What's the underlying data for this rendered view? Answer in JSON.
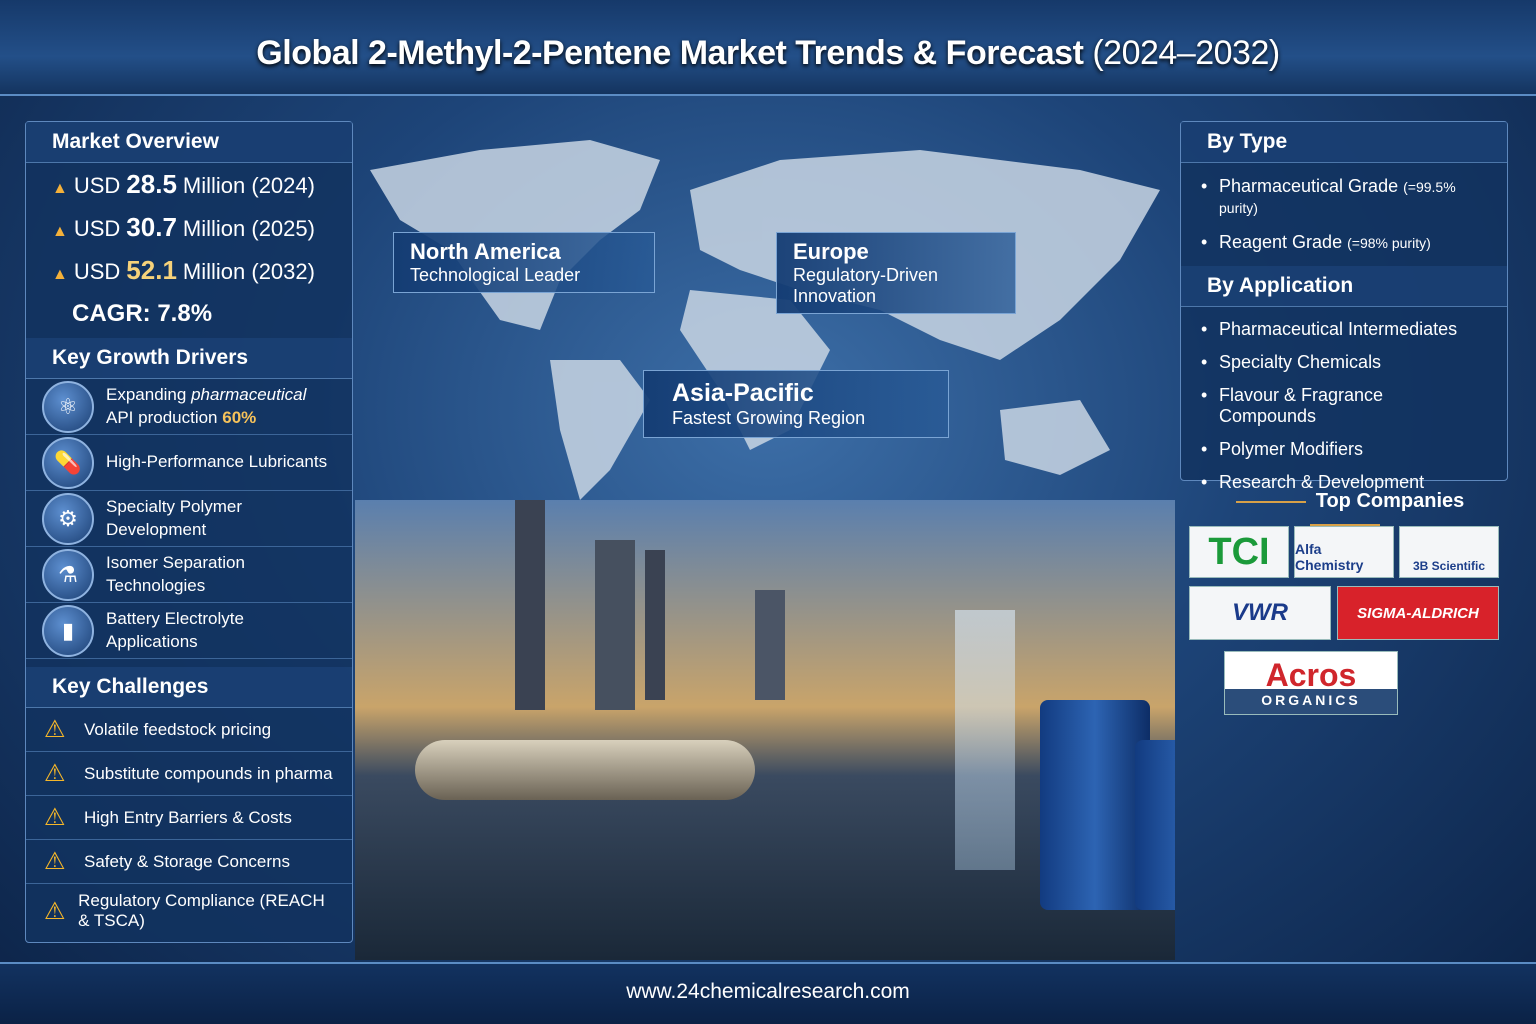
{
  "title": {
    "main": "Global 2-Methyl-2-Pentene Market Trends & Forecast",
    "years": "(2024–2032)"
  },
  "market_overview": {
    "title": "Market Overview",
    "rows": [
      {
        "prefix": "USD",
        "value": "28.5",
        "suffix": "Million (2024)"
      },
      {
        "prefix": "USD",
        "value": "30.7",
        "suffix": "Million (2025)"
      },
      {
        "prefix": "USD",
        "value": "52.1",
        "suffix": "Million (2032)"
      }
    ],
    "cagr": "CAGR: 7.8%"
  },
  "drivers": {
    "title": "Key Growth Drivers",
    "items": [
      {
        "pre": "Expanding ",
        "em": "pharmaceutical",
        "post": " API production ",
        "hl": "60%",
        "icon": "molecule-icon"
      },
      {
        "label": "High-Performance Lubricants",
        "icon": "capsule-icon"
      },
      {
        "label": "Specialty Polymer Development",
        "icon": "gears-icon"
      },
      {
        "label": "Isomer Separation Technologies",
        "icon": "separation-icon"
      },
      {
        "label": "Battery Electrolyte Applications",
        "icon": "battery-icon"
      }
    ]
  },
  "challenges": {
    "title": "Key Challenges",
    "items": [
      "Volatile feedstock pricing",
      "Substitute compounds in pharma",
      "High Entry Barriers & Costs",
      "Safety & Storage Concerns",
      "Regulatory Compliance (REACH & TSCA)"
    ]
  },
  "regions": [
    {
      "name": "North America",
      "desc": "Technological Leader"
    },
    {
      "name": "Europe",
      "desc": "Regulatory-Driven Innovation"
    },
    {
      "name": "Asia-Pacific",
      "desc": "Fastest Growing Region"
    }
  ],
  "by_type": {
    "title": "By Type",
    "items": [
      {
        "label": "Pharmaceutical Grade",
        "note": "(=99.5% purity)"
      },
      {
        "label": "Reagent Grade",
        "note": "(=98% purity)"
      }
    ]
  },
  "by_application": {
    "title": "By Application",
    "items": [
      "Pharmaceutical Intermediates",
      "Specialty Chemicals",
      "Flavour & Fragrance Compounds",
      "Polymer Modifiers",
      "Research & Development"
    ]
  },
  "companies": {
    "title": "Top Companies",
    "logos": [
      "TCI",
      "Alfa Chemistry",
      "3B Scientific",
      "VWR",
      "SIGMA-ALDRICH",
      "Acros",
      "ORGANICS"
    ]
  },
  "footer": "www.24chemicalresearch.com",
  "colors": {
    "accent": "#f6c25a",
    "panel": "#12325f",
    "warning": "#f4b62a"
  }
}
